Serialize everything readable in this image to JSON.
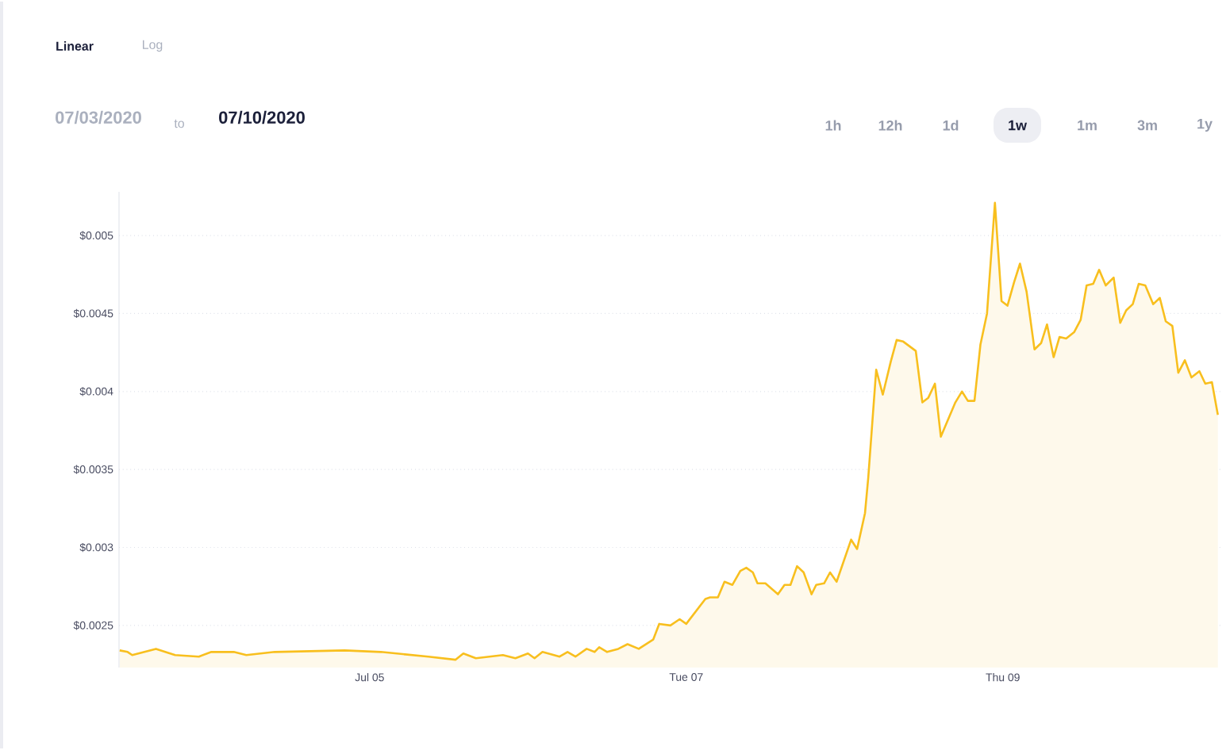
{
  "chart_data": {
    "type": "area",
    "annotations": [
      "Linear",
      "Log",
      "07/03/2020",
      "to",
      "07/10/2020",
      "1h",
      "12h",
      "1d",
      "1w",
      "1m",
      "3m",
      "1y"
    ],
    "x": [
      "2020-07-03T10:06",
      "2020-07-03T11:18",
      "2020-07-03T12:00",
      "2020-07-03T15:36",
      "2020-07-03T18:30",
      "2020-07-03T22:06",
      "2020-07-04T00:00",
      "2020-07-04T03:24",
      "2020-07-04T05:18",
      "2020-07-04T09:36",
      "2020-07-04T20:12",
      "2020-07-05T01:42",
      "2020-07-05T08:54",
      "2020-07-05T13:00",
      "2020-07-05T14:12",
      "2020-07-05T16:06",
      "2020-07-05T20:12",
      "2020-07-05T22:06",
      "2020-07-06T00:00",
      "2020-07-06T01:00",
      "2020-07-06T02:12",
      "2020-07-06T04:48",
      "2020-07-06T06:00",
      "2020-07-06T07:12",
      "2020-07-06T08:54",
      "2020-07-06T10:06",
      "2020-07-06T10:48",
      "2020-07-06T12:00",
      "2020-07-06T13:42",
      "2020-07-06T15:06",
      "2020-07-06T16:48",
      "2020-07-06T19:00",
      "2020-07-06T19:54",
      "2020-07-06T21:36",
      "2020-07-06T23:00",
      "2020-07-07T00:00",
      "2020-07-07T02:54",
      "2020-07-07T03:36",
      "2020-07-07T04:48",
      "2020-07-07T05:48",
      "2020-07-07T07:00",
      "2020-07-07T08:12",
      "2020-07-07T09:06",
      "2020-07-07T10:06",
      "2020-07-07T10:48",
      "2020-07-07T12:00",
      "2020-07-07T13:54",
      "2020-07-07T14:54",
      "2020-07-07T15:48",
      "2020-07-07T16:48",
      "2020-07-07T17:48",
      "2020-07-07T19:00",
      "2020-07-07T19:42",
      "2020-07-07T20:54",
      "2020-07-07T21:48",
      "2020-07-07T22:48",
      "2020-07-08T01:00",
      "2020-07-08T01:54",
      "2020-07-08T03:06",
      "2020-07-08T03:36",
      "2020-07-08T04:48",
      "2020-07-08T05:48",
      "2020-07-08T07:00",
      "2020-07-08T07:54",
      "2020-07-08T08:54",
      "2020-07-08T10:48",
      "2020-07-08T11:48",
      "2020-07-08T12:42",
      "2020-07-08T13:42",
      "2020-07-08T14:36",
      "2020-07-08T16:48",
      "2020-07-08T17:48",
      "2020-07-08T18:42",
      "2020-07-08T19:42",
      "2020-07-08T20:36",
      "2020-07-08T21:36",
      "2020-07-08T22:48",
      "2020-07-08T23:48",
      "2020-07-09T00:42",
      "2020-07-09T01:42",
      "2020-07-09T02:36",
      "2020-07-09T03:36",
      "2020-07-09T04:48",
      "2020-07-09T05:48",
      "2020-07-09T06:42",
      "2020-07-09T07:42",
      "2020-07-09T08:36",
      "2020-07-09T09:36",
      "2020-07-09T10:48",
      "2020-07-09T11:48",
      "2020-07-09T12:42",
      "2020-07-09T13:42",
      "2020-07-09T14:36",
      "2020-07-09T15:36",
      "2020-07-09T16:48",
      "2020-07-09T17:48",
      "2020-07-09T18:42",
      "2020-07-09T19:42",
      "2020-07-09T20:36",
      "2020-07-09T21:36",
      "2020-07-09T22:48",
      "2020-07-09T23:48",
      "2020-07-10T00:42",
      "2020-07-10T01:42",
      "2020-07-10T02:36",
      "2020-07-10T03:36",
      "2020-07-10T04:36",
      "2020-07-10T05:48",
      "2020-07-10T06:42",
      "2020-07-10T07:42",
      "2020-07-10T08:36"
    ],
    "series": [
      {
        "color": "#f8bf1e",
        "values": [
          0.00234,
          0.00233,
          0.00231,
          0.00235,
          0.00231,
          0.0023,
          0.00233,
          0.00233,
          0.00231,
          0.00233,
          0.00234,
          0.00233,
          0.0023,
          0.00228,
          0.00232,
          0.00229,
          0.00231,
          0.00229,
          0.00232,
          0.00229,
          0.00233,
          0.0023,
          0.00233,
          0.0023,
          0.00235,
          0.00233,
          0.00236,
          0.00233,
          0.00235,
          0.00238,
          0.00235,
          0.00241,
          0.00251,
          0.0025,
          0.00254,
          0.00251,
          0.00267,
          0.00268,
          0.00268,
          0.00278,
          0.00276,
          0.00285,
          0.00287,
          0.00284,
          0.00277,
          0.00277,
          0.0027,
          0.00276,
          0.00276,
          0.00288,
          0.00284,
          0.0027,
          0.00276,
          0.00277,
          0.00284,
          0.00278,
          0.00305,
          0.00299,
          0.00322,
          0.00345,
          0.00414,
          0.00398,
          0.00419,
          0.00433,
          0.00432,
          0.00426,
          0.00393,
          0.00396,
          0.00405,
          0.00371,
          0.00393,
          0.004,
          0.00394,
          0.00394,
          0.0043,
          0.0045,
          0.00521,
          0.00458,
          0.00455,
          0.0047,
          0.00482,
          0.00464,
          0.00427,
          0.00431,
          0.00443,
          0.00422,
          0.00435,
          0.00434,
          0.00438,
          0.00446,
          0.00468,
          0.00469,
          0.00478,
          0.00468,
          0.00473,
          0.00444,
          0.00452,
          0.00456,
          0.00469,
          0.00468,
          0.00456,
          0.0046,
          0.00445,
          0.00442,
          0.00412,
          0.0042,
          0.00409,
          0.00413,
          0.00405,
          0.00406,
          0.00385
        ]
      }
    ],
    "xlim": [
      "2020-07-03T10:00",
      "2020-07-10T09:00"
    ],
    "xticks": [
      {
        "value": "2020-07-05",
        "label": "Jul 05"
      },
      {
        "value": "2020-07-07",
        "label": "Tue 07"
      },
      {
        "value": "2020-07-09",
        "label": "Thu 09"
      }
    ],
    "ylim": [
      0.00223,
      0.00528
    ],
    "yticks": [
      {
        "value": 0.0025,
        "label": "$0.0025"
      },
      {
        "value": 0.003,
        "label": "$0.003"
      },
      {
        "value": 0.0035,
        "label": "$0.0035"
      },
      {
        "value": 0.004,
        "label": "$0.004"
      },
      {
        "value": 0.0045,
        "label": "$0.0045"
      },
      {
        "value": 0.005,
        "label": "$0.005"
      }
    ],
    "grid": "y",
    "marker": "none",
    "line_style": "solid"
  }
}
